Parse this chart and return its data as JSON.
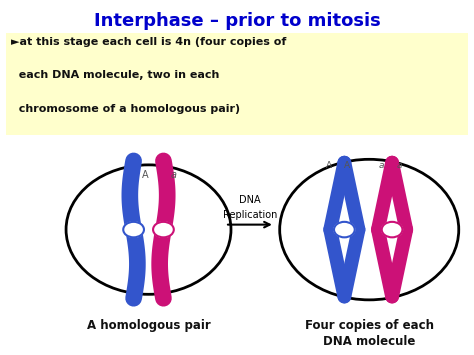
{
  "title": "Interphase – prior to mitosis",
  "title_color": "#0000cc",
  "title_fontsize": 13,
  "bullet_text_line1": "►at this stage each cell is 4n (four copies of",
  "bullet_text_line2": "  each DNA molecule, two in each",
  "bullet_text_line3": "  chromosome of a homologous pair)",
  "bullet_bg": "#ffffcc",
  "label_left": "A homologous pair",
  "label_right_line1": "Four copies of each",
  "label_right_line2": "DNA molecule",
  "arrow_label_line1": "DNA",
  "arrow_label_line2": "Replication",
  "blue_color": "#3355cc",
  "pink_color": "#cc1177",
  "centromere_white": "#ddddff",
  "bg_color": "#ffffff",
  "circle_color": "#111111"
}
